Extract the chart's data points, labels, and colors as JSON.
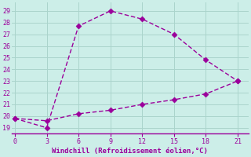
{
  "line1_x": [
    0,
    3,
    6,
    9,
    12,
    15,
    18,
    21
  ],
  "line1_y": [
    19.8,
    19.0,
    27.7,
    29.0,
    28.3,
    27.0,
    24.8,
    23.0
  ],
  "line2_x": [
    0,
    3,
    6,
    9,
    12,
    15,
    18,
    21
  ],
  "line2_y": [
    19.8,
    19.6,
    20.2,
    20.5,
    21.0,
    21.4,
    21.9,
    23.0
  ],
  "color": "#9b009b",
  "bg_color": "#cceee8",
  "grid_color": "#aad4cc",
  "xlabel": "Windchill (Refroidissement éolien,°C)",
  "ylabel_ticks": [
    19,
    20,
    21,
    22,
    23,
    24,
    25,
    26,
    27,
    28,
    29
  ],
  "xticks": [
    0,
    3,
    6,
    9,
    12,
    15,
    18,
    21
  ],
  "xlim": [
    -0.3,
    22.0
  ],
  "ylim": [
    18.5,
    29.7
  ],
  "tick_color": "#9b009b",
  "markersize": 3.5,
  "linewidth": 1.0,
  "dashes": [
    4,
    2
  ],
  "tick_fontsize": 6.0,
  "label_fontsize": 6.5
}
